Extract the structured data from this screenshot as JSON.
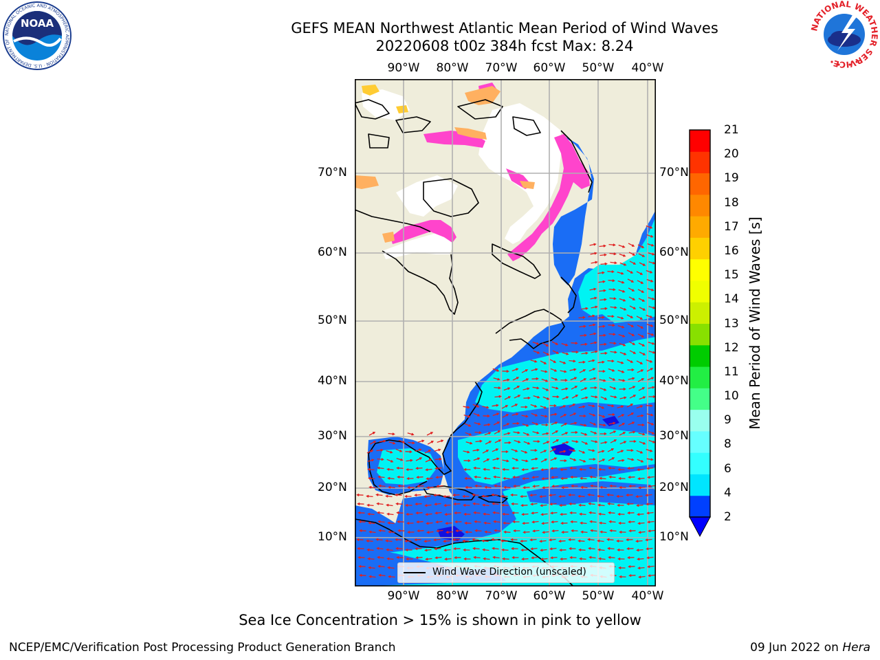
{
  "header": {
    "title_line1": "GEFS MEAN Northwest Atlantic Mean Period of Wind Waves",
    "title_line2": "20220608 t00z 384h fcst   Max: 8.24"
  },
  "map": {
    "lon_labels": [
      "90°W",
      "80°W",
      "70°W",
      "60°W",
      "50°W",
      "40°W"
    ],
    "lat_labels": [
      "70°N",
      "60°N",
      "50°N",
      "40°N",
      "30°N",
      "20°N",
      "10°N"
    ],
    "legend_label": "Wind Wave Direction (unscaled)",
    "colors": {
      "land": "#efeddb",
      "ocean_low": "#1a6df5",
      "ocean_mid": "#00f3f3",
      "ice": "#ff44cc",
      "arrows": "#e02020"
    }
  },
  "colorbar": {
    "label": "Mean Period of Wind Waves [s]",
    "ticks": [
      "21",
      "20",
      "19",
      "18",
      "17",
      "16",
      "15",
      "14",
      "13",
      "12",
      "11",
      "10",
      "9",
      "8",
      "6",
      "4",
      "2"
    ],
    "colors": [
      "#0040ff",
      "#00e5ff",
      "#33ffff",
      "#66ffff",
      "#99ffee",
      "#44ff88",
      "#22ee44",
      "#00cc00",
      "#88e000",
      "#ccf000",
      "#f0ff00",
      "#ffff00",
      "#ffd000",
      "#ffaa00",
      "#ff8800",
      "#ff6600",
      "#ff3300",
      "#ff0000"
    ],
    "extend_color": "#0000ff"
  },
  "subtitle": "Sea Ice Concentration > 15% is shown in pink to yellow",
  "footer": {
    "left": "NCEP/EMC/Verification Post Processing Product Generation Branch",
    "right_date": "09 Jun 2022 on ",
    "right_host": "Hera"
  },
  "logos": {
    "noaa_text": "NOAA",
    "noaa_ring": "NATIONAL OCEANIC AND ATMOSPHERIC ADMINISTRATION · U.S. DEPARTMENT OF COMMERCE",
    "nws_ring": "NATIONAL WEATHER SERVICE"
  }
}
